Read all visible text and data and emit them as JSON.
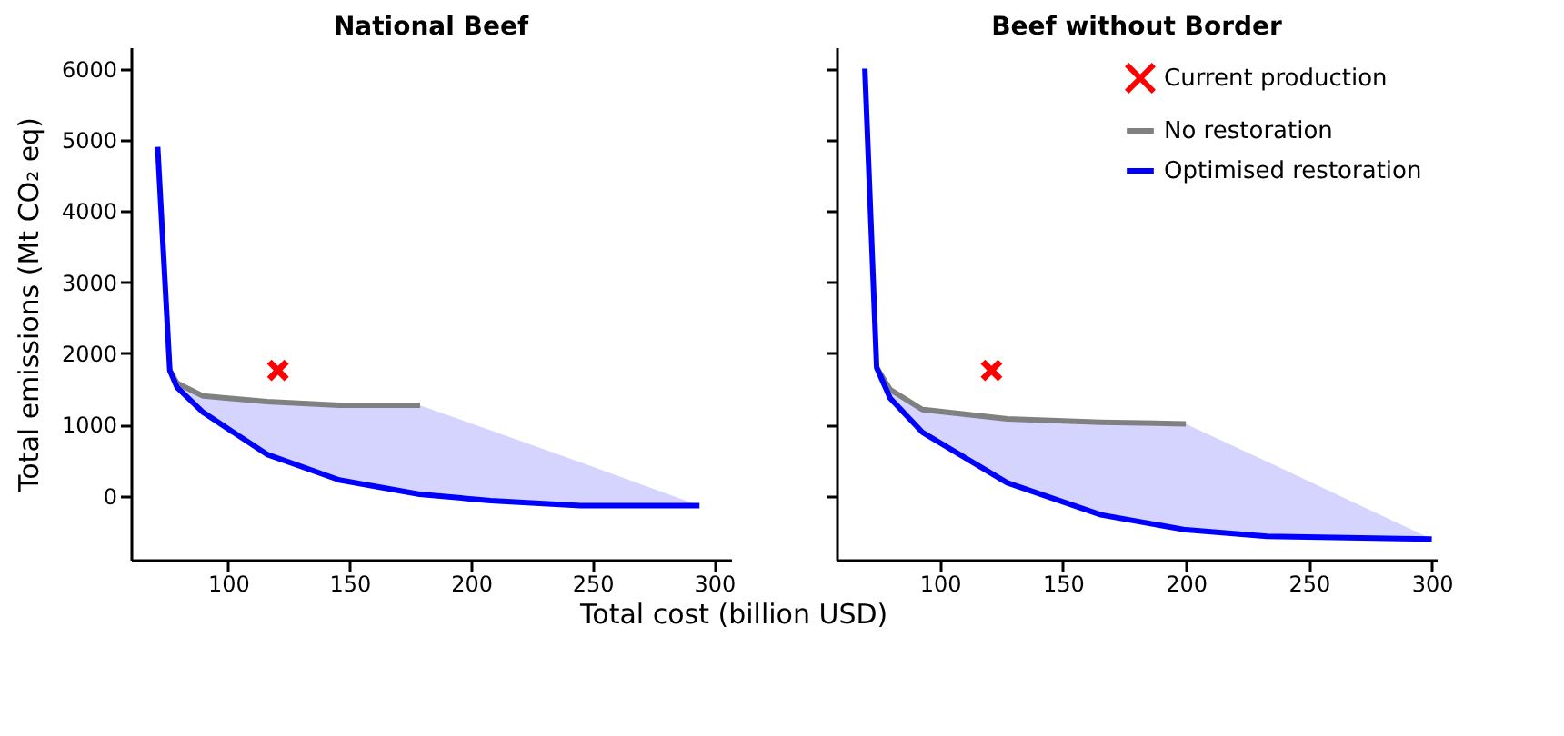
{
  "chart_data": [
    {
      "type": "line",
      "title": "National Beef",
      "xlabel": "Total cost (billion USD)",
      "ylabel": "Total emissions (Mt CO₂ eq)",
      "xlim": [
        60,
        307
      ],
      "ylim": [
        -900,
        6300
      ],
      "xticks": [
        100,
        150,
        200,
        250,
        300
      ],
      "yticks": [
        0,
        1000,
        2000,
        3000,
        4000,
        5000,
        6000
      ],
      "series": [
        {
          "type": "scatter",
          "marker": "cross",
          "color": "#ff0000",
          "x": [
            120.5
          ],
          "values": [
            1760
          ]
        },
        {
          "color": "#808080",
          "x": [
            76,
            79,
            89.7,
            116,
            145.7,
            179
          ],
          "values": [
            1760,
            1580,
            1400,
            1320,
            1270,
            1270
          ]
        },
        {
          "color": "#0000ff",
          "x": [
            71,
            76,
            79,
            89.7,
            116,
            145.7,
            178.8,
            208,
            245,
            294
          ],
          "values": [
            4900,
            1760,
            1520,
            1170,
            580,
            220,
            20,
            -70,
            -140,
            -140
          ],
          "lower": [
            4900,
            1760,
            1520,
            1170,
            580,
            220,
            20,
            -70,
            -140,
            -140
          ],
          "upper": [
            4900,
            1760,
            1580,
            1400,
            1320,
            1270,
            1270,
            920,
            470,
            -140
          ]
        }
      ]
    },
    {
      "type": "line",
      "title": "Beef without Border",
      "xlim": [
        58,
        302
      ],
      "ylim": [
        -900,
        6300
      ],
      "xticks": [
        100,
        150,
        200,
        250,
        300
      ],
      "yticks": [
        0,
        1000,
        2000,
        3000,
        4000,
        5000,
        6000
      ],
      "tick_labels": "x",
      "legend": "top right",
      "series": [
        {
          "name": "Current production",
          "type": "scatter",
          "marker": "cross",
          "color": "#ff0000",
          "x": [
            121
          ],
          "values": [
            1760
          ]
        },
        {
          "name": "No restoration",
          "color": "#808080",
          "x": [
            74.3,
            79.8,
            92.9,
            127.4,
            165.5,
            200
          ],
          "values": [
            1800,
            1490,
            1210,
            1080,
            1030,
            1010
          ]
        },
        {
          "name": "Optimised restoration",
          "color": "#0000ff",
          "x": [
            69.5,
            74.3,
            79.8,
            92.9,
            127.4,
            165.5,
            200,
            233,
            300
          ],
          "values": [
            6000,
            1800,
            1370,
            890,
            180,
            -270,
            -480,
            -570,
            -610
          ],
          "lower": [
            6000,
            1800,
            1370,
            890,
            180,
            -270,
            -480,
            -570,
            -610
          ],
          "upper": [
            6000,
            1800,
            1490,
            1210,
            1080,
            1030,
            1010,
            480,
            -610
          ]
        }
      ]
    }
  ]
}
